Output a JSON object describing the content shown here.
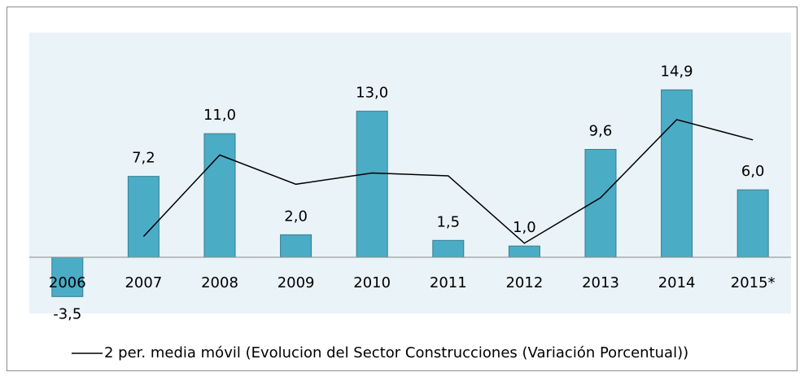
{
  "chart_data": {
    "type": "bar",
    "categories": [
      "2006",
      "2007",
      "2008",
      "2009",
      "2010",
      "2011",
      "2012",
      "2013",
      "2014",
      "2015*"
    ],
    "series": [
      {
        "type": "bar",
        "color": "#4bacc6",
        "values": [
          -3.5,
          7.2,
          11.0,
          2.0,
          13.0,
          1.5,
          1.0,
          9.6,
          14.9,
          6.0
        ],
        "value_labels": [
          "-3,5",
          "7,2",
          "11,0",
          "2,0",
          "13,0",
          "1,5",
          "1,0",
          "9,6",
          "14,9",
          "6,0"
        ]
      },
      {
        "type": "line",
        "name": "2 per. media móvil (Evolucion del Sector Construcciones (Variación Porcentual))",
        "color": "#000000",
        "values": [
          null,
          1.85,
          9.1,
          6.5,
          7.5,
          7.25,
          1.25,
          5.3,
          12.25,
          10.45
        ]
      }
    ],
    "ylim": [
      -5,
      20
    ]
  }
}
